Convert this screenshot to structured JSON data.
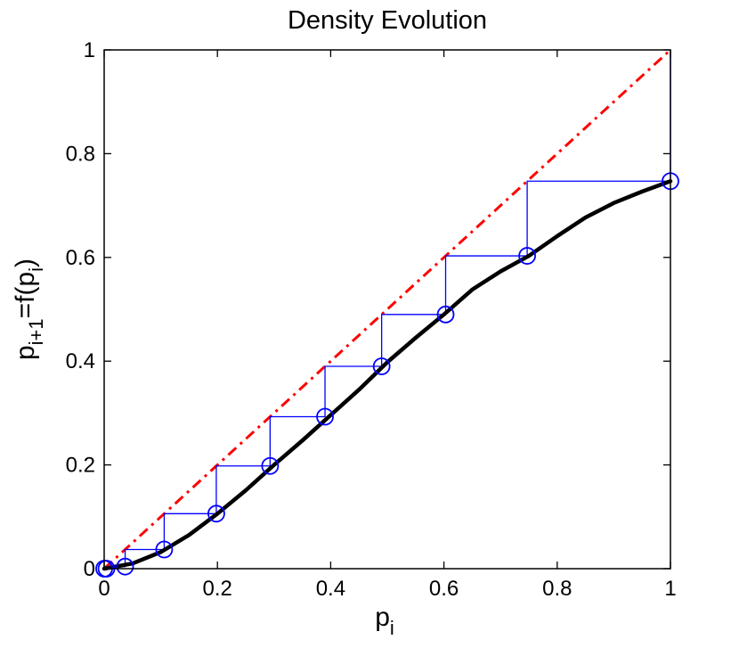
{
  "chart_data": {
    "type": "line",
    "title": "Density Evolution",
    "xlabel": {
      "base": "p",
      "sub": "i"
    },
    "ylabel": {
      "base1": "p",
      "sub1": "i+1",
      "mid": "=f(p",
      "sub2": "i",
      "end": ")"
    },
    "xlim": [
      0,
      1
    ],
    "ylim": [
      0,
      1
    ],
    "xticks": [
      0,
      0.2,
      0.4,
      0.6,
      0.8,
      1
    ],
    "yticks": [
      0,
      0.2,
      0.4,
      0.6,
      0.8,
      1
    ],
    "xtick_labels": [
      "0",
      "0.2",
      "0.4",
      "0.6",
      "0.8",
      "1"
    ],
    "ytick_labels": [
      "0",
      "0.2",
      "0.4",
      "0.6",
      "0.8",
      "1"
    ],
    "grid": false,
    "series": [
      {
        "style": "solid",
        "color": "#000000",
        "x": [
          0,
          0.05,
          0.1,
          0.15,
          0.2,
          0.25,
          0.3,
          0.35,
          0.4,
          0.45,
          0.5,
          0.55,
          0.6,
          0.65,
          0.7,
          0.75,
          0.8,
          0.85,
          0.9,
          0.95,
          1.0
        ],
        "y": [
          0,
          0.01,
          0.032,
          0.065,
          0.106,
          0.151,
          0.2,
          0.247,
          0.296,
          0.345,
          0.398,
          0.445,
          0.49,
          0.538,
          0.573,
          0.603,
          0.641,
          0.677,
          0.705,
          0.727,
          0.747
        ]
      },
      {
        "style": "dash-dot",
        "color": "#ff0000",
        "x": [
          0,
          1
        ],
        "y": [
          0,
          1
        ]
      }
    ],
    "iteration": {
      "color": "#0000ff",
      "points": [
        [
          1.0,
          0.747
        ],
        [
          0.747,
          0.603
        ],
        [
          0.603,
          0.49
        ],
        [
          0.49,
          0.39
        ],
        [
          0.39,
          0.293
        ],
        [
          0.293,
          0.198
        ],
        [
          0.198,
          0.106
        ],
        [
          0.106,
          0.037
        ],
        [
          0.037,
          0.004
        ],
        [
          0.004,
          0.0
        ],
        [
          0.0,
          0.0
        ]
      ]
    }
  }
}
